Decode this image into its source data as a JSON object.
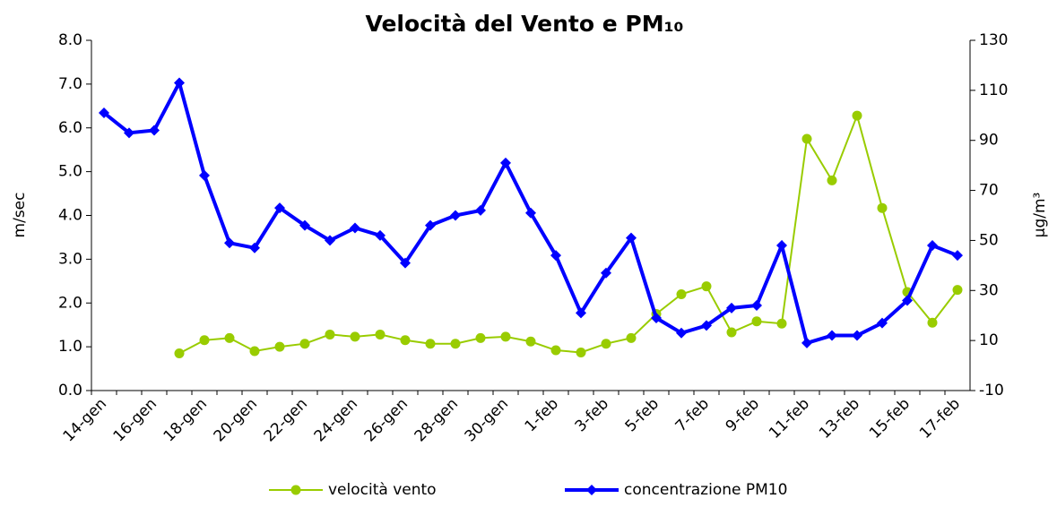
{
  "chart_data": {
    "type": "line",
    "title": "Velocità del Vento e PM₁₀",
    "y_label": "m/sec",
    "y2_label": "µg/m³",
    "categories": [
      "14-gen",
      null,
      "16-gen",
      null,
      "18-gen",
      null,
      "20-gen",
      null,
      "22-gen",
      null,
      "24-gen",
      null,
      "26-gen",
      null,
      "28-gen",
      null,
      "30-gen",
      null,
      "1-feb",
      null,
      "3-feb",
      null,
      "5-feb",
      null,
      "7-feb",
      null,
      "9-feb",
      null,
      "11-feb",
      null,
      "13-feb",
      null,
      "15-feb",
      null,
      "17-feb"
    ],
    "series": [
      {
        "name": "velocità vento",
        "color": "#99cc00",
        "marker": "circle",
        "values": [
          null,
          null,
          null,
          0.85,
          1.15,
          1.2,
          0.9,
          1.0,
          1.07,
          1.28,
          1.23,
          1.28,
          1.15,
          1.07,
          1.07,
          1.2,
          1.23,
          1.12,
          0.92,
          0.87,
          1.07,
          1.2,
          1.75,
          2.2,
          2.38,
          1.33,
          1.58,
          1.53,
          5.75,
          4.8,
          6.28,
          4.17,
          2.25,
          1.55,
          2.3
        ]
      },
      {
        "name": "concentrazione PM10",
        "color": "#0000ff",
        "marker": "diamond",
        "axis": "y2",
        "values": [
          101,
          93,
          94,
          113,
          76,
          49,
          47,
          63,
          56,
          50,
          55,
          52,
          41,
          56,
          60,
          62,
          81,
          61,
          44,
          21,
          37,
          51,
          19,
          13,
          16,
          23,
          24,
          48,
          9,
          12,
          12,
          17,
          26,
          48,
          44
        ]
      }
    ],
    "ylim": [
      0,
      8
    ],
    "yticks": [
      {
        "value": 0,
        "label": "0.0"
      },
      {
        "value": 1,
        "label": "1.0"
      },
      {
        "value": 2,
        "label": "2.0"
      },
      {
        "value": 3,
        "label": "3.0"
      },
      {
        "value": 4,
        "label": "4.0"
      },
      {
        "value": 5,
        "label": "5.0"
      },
      {
        "value": 6,
        "label": "6.0"
      },
      {
        "value": 7,
        "label": "7.0"
      },
      {
        "value": 8,
        "label": "8.0"
      }
    ],
    "y2lim": [
      -10,
      130
    ],
    "y2ticks": [
      -10,
      10,
      30,
      50,
      70,
      90,
      110,
      130
    ],
    "legend": "bottom"
  }
}
